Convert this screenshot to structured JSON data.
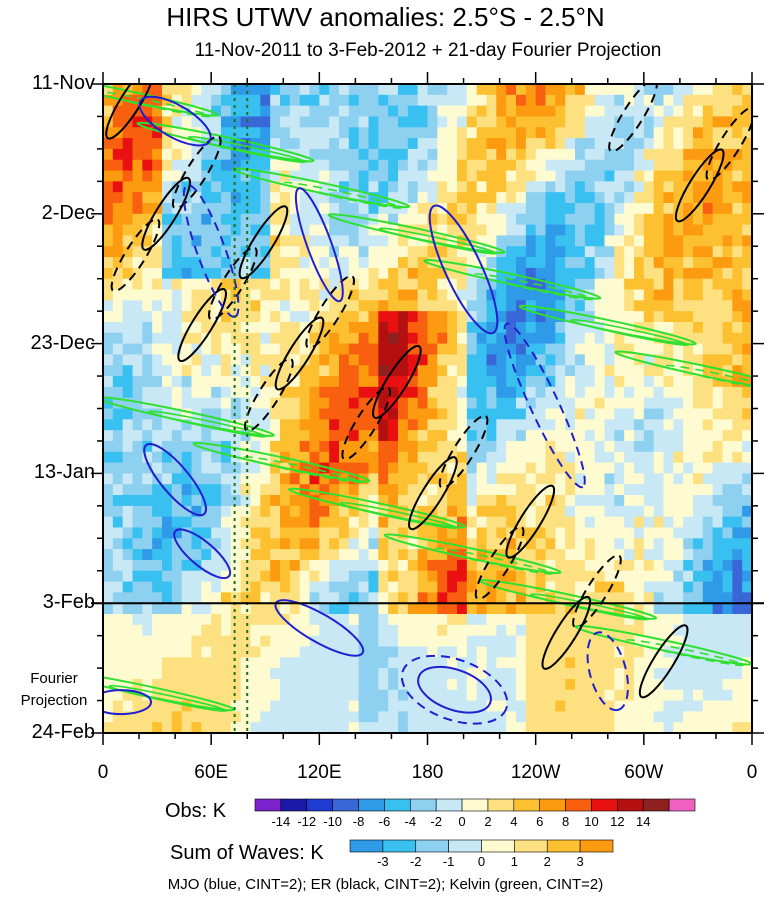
{
  "chart_data": {
    "type": "heatmap",
    "title": "HIRS UTWV anomalies: 2.5°S - 2.5°N",
    "subtitle": "11-Nov-2011 to 3-Feb-2012 + 21-day Fourier Projection",
    "x_ticks": [
      "0",
      "60E",
      "120E",
      "180",
      "120W",
      "60W",
      "0"
    ],
    "x_values": [
      0,
      60,
      120,
      180,
      240,
      300,
      360
    ],
    "y_ticks": [
      "11-Nov",
      "2-Dec",
      "23-Dec",
      "13-Jan",
      "3-Feb",
      "24-Feb"
    ],
    "y_values_days": [
      0,
      21,
      42,
      63,
      84,
      105
    ],
    "fourier_label": "Fourier Projection",
    "obs_colorbar": {
      "title": "Obs: K",
      "levels": [
        "-14",
        "-12",
        "-10",
        "-8",
        "-6",
        "-4",
        "-2",
        "0",
        "2",
        "4",
        "6",
        "8",
        "10",
        "12",
        "14"
      ],
      "colors": [
        "#7a22cc",
        "#1a1aa8",
        "#1f3bd0",
        "#3a67d8",
        "#2f9ae8",
        "#38c0f0",
        "#8ed0f0",
        "#c8e8f6",
        "#fffbd0",
        "#fde080",
        "#fcc030",
        "#fc9a10",
        "#f86010",
        "#e81010",
        "#b41010",
        "#8e2020",
        "#f060c0"
      ]
    },
    "waves_colorbar": {
      "title": "Sum of Waves: K",
      "levels": [
        "-3",
        "-2",
        "-1",
        "0",
        "1",
        "2",
        "3"
      ],
      "colors": [
        "#2f9ae8",
        "#38c0f0",
        "#8ed0f0",
        "#c8e8f6",
        "#fffbd0",
        "#fde080",
        "#fcc030",
        "#fc9a10"
      ]
    },
    "contours": [
      {
        "name": "MJO",
        "color": "#2020d0",
        "cint": 2
      },
      {
        "name": "ER",
        "color": "#000000",
        "cint": 2
      },
      {
        "name": "Kelvin",
        "color": "#30e030",
        "cint": 2
      }
    ],
    "reference_lines": {
      "dotted_green_longitudes": [
        73,
        80
      ],
      "end_of_obs": "3-Feb"
    }
  },
  "footer": "MJO (blue, CINT=2); ER (black, CINT=2); Kelvin (green, CINT=2)"
}
